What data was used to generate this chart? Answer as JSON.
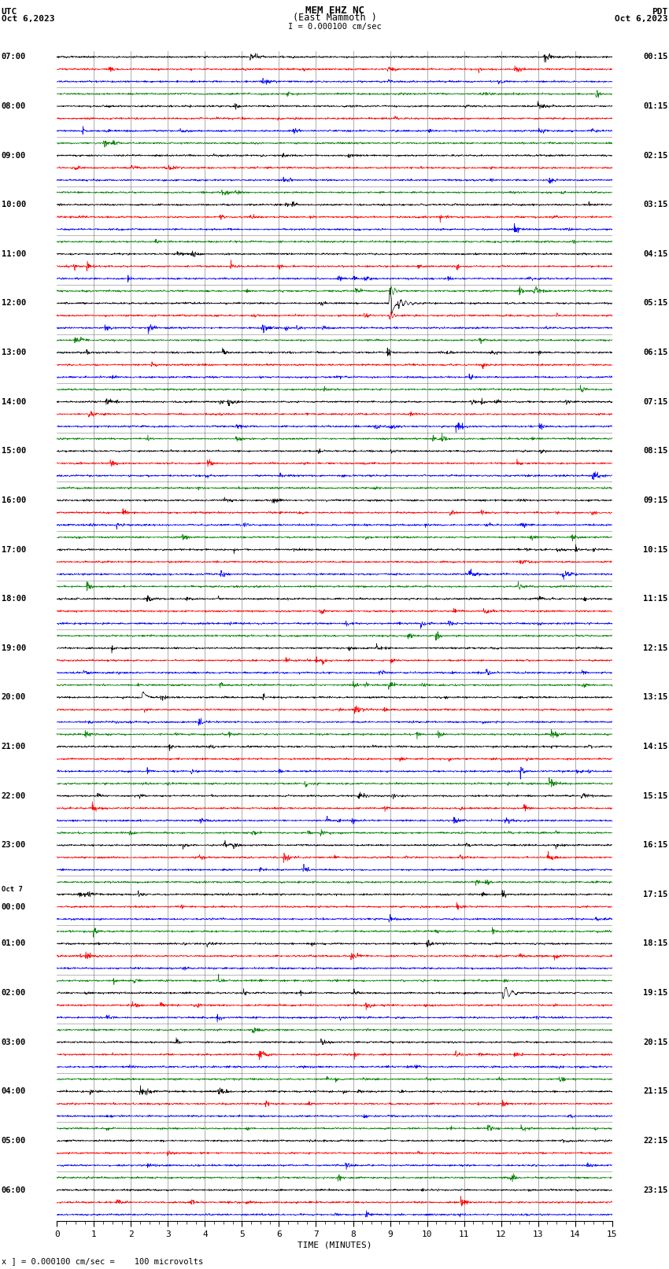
{
  "title_line1": "MEM EHZ NC",
  "title_line2": "(East Mammoth )",
  "scale_label": "I = 0.000100 cm/sec",
  "left_header_line1": "UTC",
  "left_header_line2": "Oct 6,2023",
  "right_header_line1": "PDT",
  "right_header_line2": "Oct 6,2023",
  "bottom_label": "TIME (MINUTES)",
  "bottom_note": "x ] = 0.000100 cm/sec =    100 microvolts",
  "bg_color": "#ffffff",
  "line_colors": [
    "black",
    "red",
    "blue",
    "green"
  ],
  "utc_labels": [
    "07:00",
    "",
    "",
    "",
    "08:00",
    "",
    "",
    "",
    "09:00",
    "",
    "",
    "",
    "10:00",
    "",
    "",
    "",
    "11:00",
    "",
    "",
    "",
    "12:00",
    "",
    "",
    "",
    "13:00",
    "",
    "",
    "",
    "14:00",
    "",
    "",
    "",
    "15:00",
    "",
    "",
    "",
    "16:00",
    "",
    "",
    "",
    "17:00",
    "",
    "",
    "",
    "18:00",
    "",
    "",
    "",
    "19:00",
    "",
    "",
    "",
    "20:00",
    "",
    "",
    "",
    "21:00",
    "",
    "",
    "",
    "22:00",
    "",
    "",
    "",
    "23:00",
    "",
    "",
    "",
    "Oct 7",
    "00:00",
    "",
    "",
    "01:00",
    "",
    "",
    "",
    "02:00",
    "",
    "",
    "",
    "03:00",
    "",
    "",
    "",
    "04:00",
    "",
    "",
    "",
    "05:00",
    "",
    "",
    "",
    "06:00",
    "",
    ""
  ],
  "pdt_labels": [
    "00:15",
    "",
    "",
    "",
    "01:15",
    "",
    "",
    "",
    "02:15",
    "",
    "",
    "",
    "03:15",
    "",
    "",
    "",
    "04:15",
    "",
    "",
    "",
    "05:15",
    "",
    "",
    "",
    "06:15",
    "",
    "",
    "",
    "07:15",
    "",
    "",
    "",
    "08:15",
    "",
    "",
    "",
    "09:15",
    "",
    "",
    "",
    "10:15",
    "",
    "",
    "",
    "11:15",
    "",
    "",
    "",
    "12:15",
    "",
    "",
    "",
    "13:15",
    "",
    "",
    "",
    "14:15",
    "",
    "",
    "",
    "15:15",
    "",
    "",
    "",
    "16:15",
    "",
    "",
    "",
    "17:15",
    "",
    "",
    "",
    "18:15",
    "",
    "",
    "",
    "19:15",
    "",
    "",
    "",
    "20:15",
    "",
    "",
    "",
    "21:15",
    "",
    "",
    "",
    "22:15",
    "",
    "",
    "",
    "23:15",
    "",
    ""
  ],
  "n_rows": 95,
  "n_cols": 1800,
  "noise_scale": 0.12,
  "eq_row": 20,
  "eq_col": 1080,
  "eq_amplitude": 4.5,
  "event2_row": 52,
  "event2_col": 280,
  "event3_row": 76,
  "event3_col": 1450,
  "figsize": [
    8.5,
    16.13
  ],
  "dpi": 100,
  "grid_color": "#888888",
  "vertical_lines_minutes": [
    1,
    2,
    3,
    4,
    5,
    6,
    7,
    8,
    9,
    10,
    11,
    12,
    13,
    14
  ],
  "xlabel_ticks": [
    0,
    1,
    2,
    3,
    4,
    5,
    6,
    7,
    8,
    9,
    10,
    11,
    12,
    13,
    14,
    15
  ]
}
